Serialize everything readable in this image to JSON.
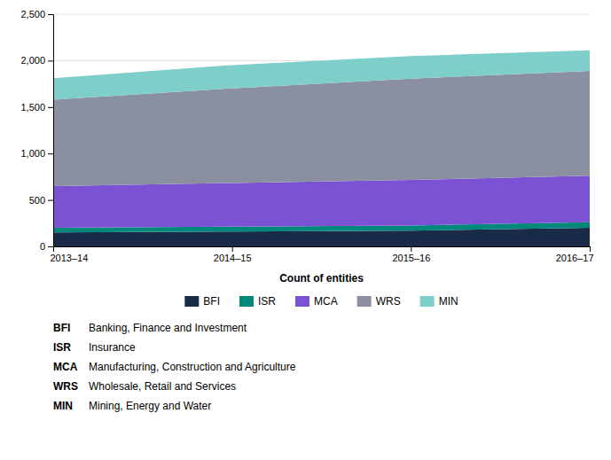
{
  "chart_data": {
    "type": "area",
    "stacked": true,
    "categories": [
      "2013–14",
      "2014–15",
      "2015–16",
      "2016–17"
    ],
    "series": [
      {
        "name": "BFI",
        "color": "#1a2b4a",
        "values": [
          150,
          160,
          170,
          200
        ]
      },
      {
        "name": "ISR",
        "color": "#00897b",
        "values": [
          50,
          52,
          55,
          60
        ]
      },
      {
        "name": "MCA",
        "color": "#7B52D3",
        "values": [
          450,
          470,
          490,
          500
        ]
      },
      {
        "name": "WRS",
        "color": "#8a90a0",
        "values": [
          930,
          1020,
          1090,
          1130
        ]
      },
      {
        "name": "MIN",
        "color": "#7ececa",
        "values": [
          230,
          250,
          245,
          220
        ]
      }
    ],
    "ylim": [
      0,
      2500
    ],
    "yticks": [
      0,
      500,
      {
        "value": 1000,
        "label": "1,000"
      },
      {
        "value": 1500,
        "label": "1,500"
      },
      {
        "value": 2000,
        "label": "2,000"
      },
      {
        "value": 2500,
        "label": "2,500"
      }
    ],
    "x_label": "Count of entities",
    "grid": true,
    "legend": "bottom",
    "annotations": [
      {
        "label": "BFI",
        "text": "Banking, Finance and Investment"
      },
      {
        "label": "ISR",
        "text": "Insurance"
      },
      {
        "label": "MCA",
        "text": "Manufacturing, Construction and Agriculture"
      },
      {
        "label": "WRS",
        "text": "Wholesale, Retail and Services"
      },
      {
        "label": "MIN",
        "text": "Mining, Energy and Water"
      }
    ]
  }
}
